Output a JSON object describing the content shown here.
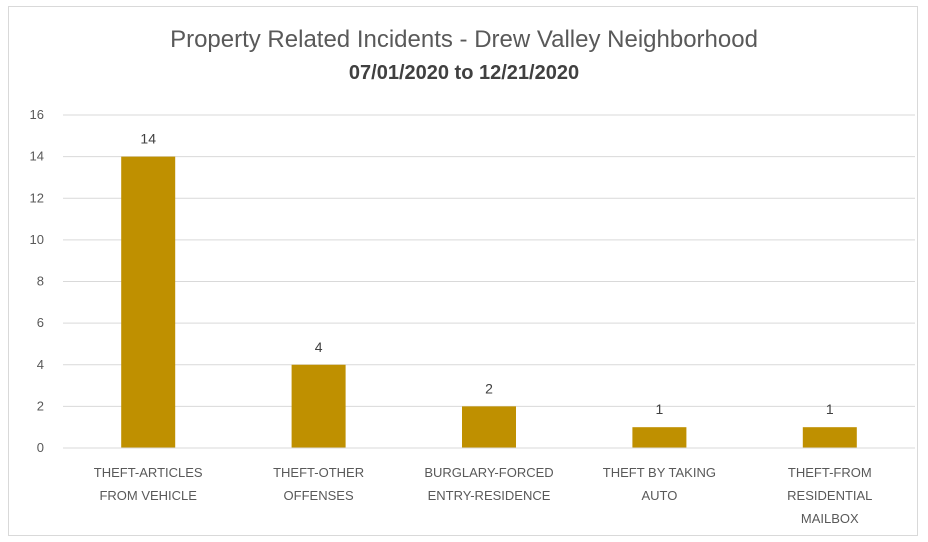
{
  "chart_data": {
    "type": "bar",
    "title": "Property Related Incidents - Drew Valley Neighborhood",
    "subtitle": "07/01/2020 to 12/21/2020",
    "categories": [
      [
        "THEFT-ARTICLES",
        "FROM VEHICLE"
      ],
      [
        "THEFT-OTHER",
        "OFFENSES"
      ],
      [
        "BURGLARY-FORCED",
        "ENTRY-RESIDENCE"
      ],
      [
        "THEFT BY TAKING",
        "AUTO"
      ],
      [
        "THEFT-FROM",
        "RESIDENTIAL",
        "MAILBOX"
      ]
    ],
    "values": [
      14,
      4,
      2,
      1,
      1
    ],
    "ylim": [
      0,
      16
    ],
    "yticks": [
      0,
      2,
      4,
      6,
      8,
      10,
      12,
      14,
      16
    ],
    "grid": true,
    "legend": "none",
    "bar_color": "#bf9000",
    "grid_color": "#d9d9d9"
  }
}
